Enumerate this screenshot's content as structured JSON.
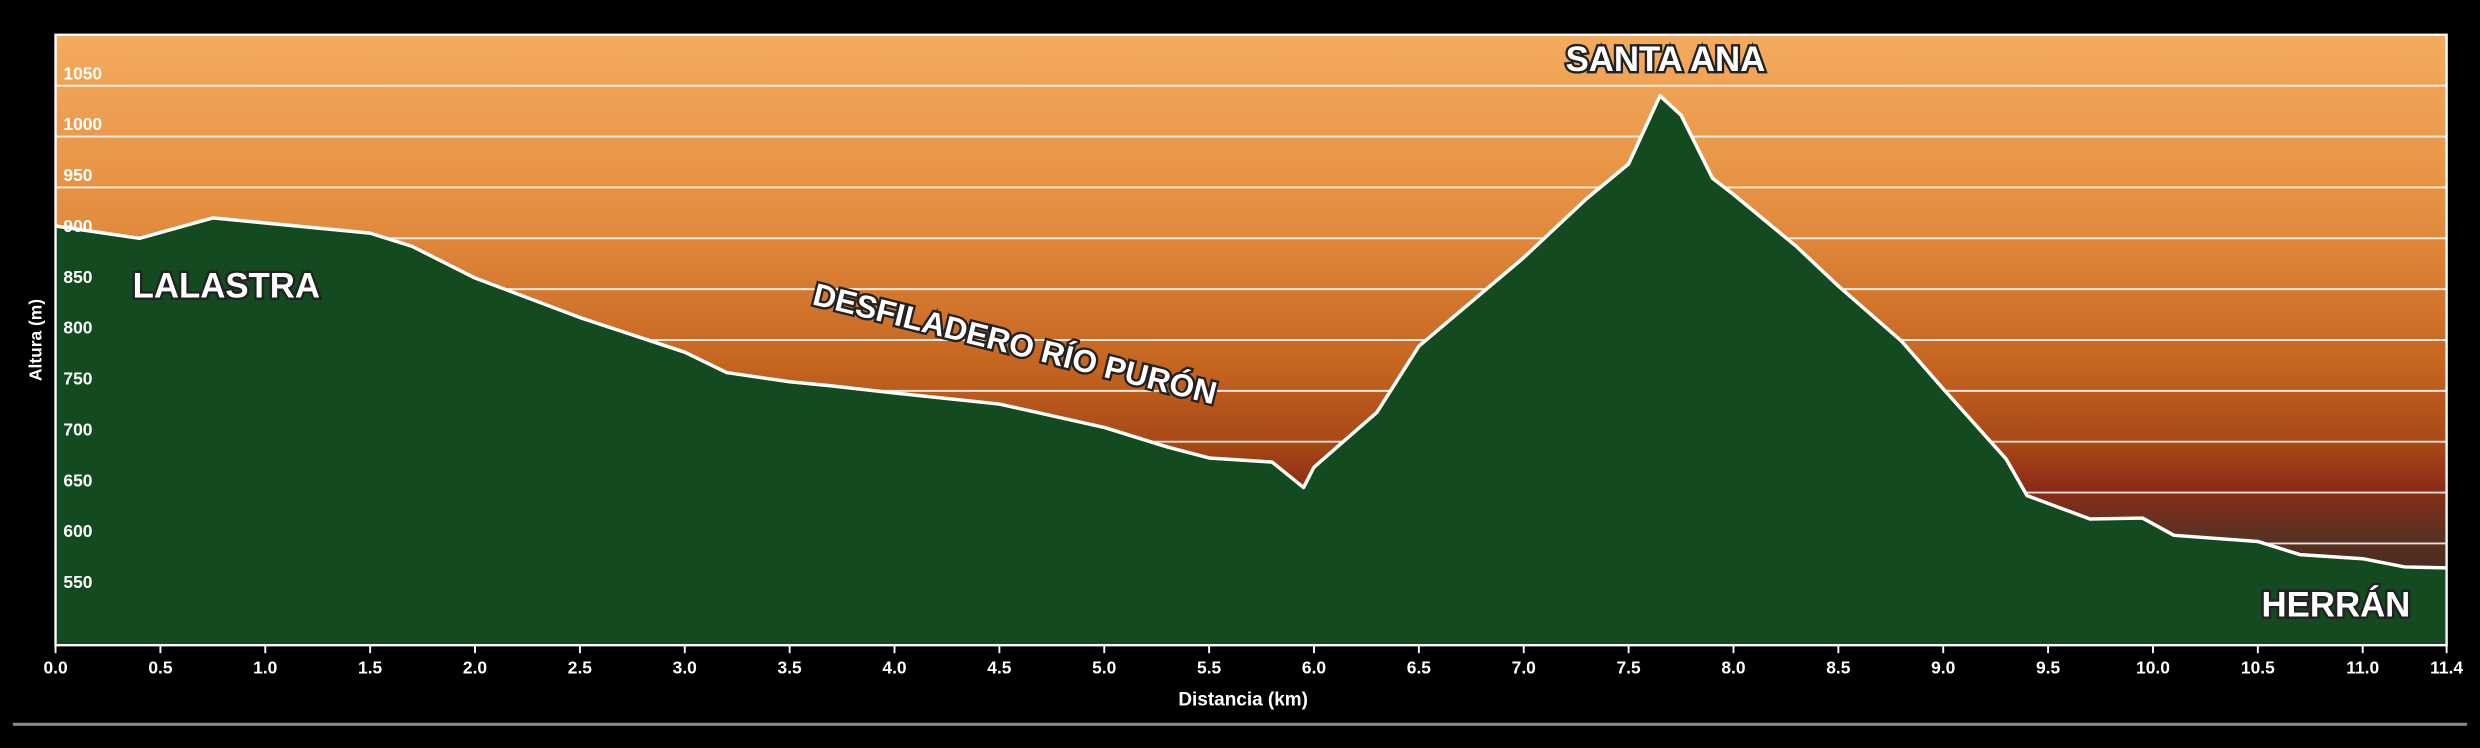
{
  "chart_data": {
    "type": "area",
    "x_label": "Distancia  (km)",
    "y_label": "Altura (m)",
    "annotations": [
      "LALASTRA",
      "DESFILADERO RÍO PURÓN",
      "SANTA ANA",
      "HERRÁN"
    ],
    "x": [
      0,
      0.4,
      0.75,
      1.0,
      1.5,
      1.7,
      2.0,
      2.5,
      3.0,
      3.2,
      3.5,
      3.7,
      4.0,
      4.5,
      5.0,
      5.3,
      5.5,
      5.8,
      5.95,
      6.0,
      6.3,
      6.5,
      7.0,
      7.3,
      7.5,
      7.65,
      7.75,
      7.9,
      8.0,
      8.3,
      8.5,
      8.8,
      9.0,
      9.3,
      9.4,
      9.7,
      9.95,
      10.1,
      10.5,
      10.7,
      11.0,
      11.2,
      11.4
    ],
    "values": [
      912,
      900,
      920,
      915,
      905,
      892,
      861,
      822,
      788,
      768,
      759,
      755,
      748,
      737,
      714,
      695,
      684,
      680,
      655,
      675,
      729,
      794,
      881,
      939,
      973,
      1040,
      1021,
      959,
      943,
      892,
      853,
      799,
      752,
      683,
      647,
      624,
      625,
      608,
      602,
      589,
      585,
      577,
      576
    ],
    "color": "#134a1f",
    "xlim": [
      0,
      11.4
    ],
    "xticks": [
      {
        "value": 0,
        "label": "0.0"
      },
      0.5,
      {
        "value": 1,
        "label": "1.0"
      },
      1.5,
      {
        "value": 2,
        "label": "2.0"
      },
      2.5,
      {
        "value": 3,
        "label": "3.0"
      },
      3.5,
      {
        "value": 4,
        "label": "4.0"
      },
      4.5,
      {
        "value": 5,
        "label": "5.0"
      },
      5.5,
      {
        "value": 6,
        "label": "6.0"
      },
      6.5,
      {
        "value": 7,
        "label": "7.0"
      },
      7.5,
      {
        "value": 8,
        "label": "8.0"
      },
      8.5,
      {
        "value": 9,
        "label": "9.0"
      },
      9.5,
      {
        "value": 10,
        "label": "10.0"
      },
      10.5,
      {
        "value": 11,
        "label": "11.0"
      },
      11.4
    ],
    "ylim": [
      500,
      1100
    ],
    "yticks": [
      550,
      600,
      650,
      700,
      750,
      800,
      850,
      900,
      950,
      1000,
      1050
    ],
    "grid": true
  }
}
